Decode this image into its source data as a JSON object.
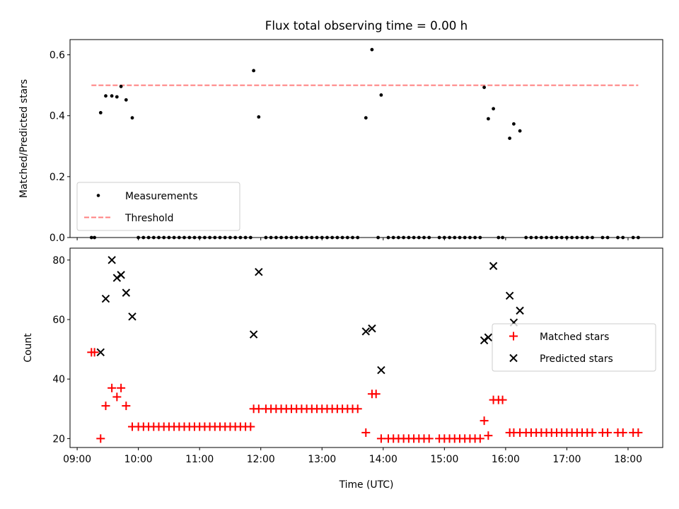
{
  "title": "Flux total observing time = 0.00 h",
  "chart_data": [
    {
      "type": "scatter",
      "ylabel": "Matched/Predicted stars",
      "xlabel": "",
      "xlim": [
        "08:53",
        "18:34"
      ],
      "ylim": [
        0,
        0.65
      ],
      "yticks": [
        "0.0",
        "0.2",
        "0.4",
        "0.6"
      ],
      "legend_placement": "lower-left",
      "legend": [
        "Measurements",
        "Threshold"
      ],
      "series": [
        {
          "name": "Measurements",
          "marker": "dot",
          "color": "#000000",
          "points": [
            [
              "09:14",
              0
            ],
            [
              "09:17",
              0
            ],
            [
              "09:23",
              0.41
            ],
            [
              "09:28",
              0.465
            ],
            [
              "09:34",
              0.465
            ],
            [
              "09:39",
              0.462
            ],
            [
              "09:43",
              0.496
            ],
            [
              "09:48",
              0.452
            ],
            [
              "09:54",
              0.393
            ],
            [
              "10:00",
              0
            ],
            [
              "10:05",
              0
            ],
            [
              "10:10",
              0
            ],
            [
              "10:15",
              0
            ],
            [
              "10:20",
              0
            ],
            [
              "10:25",
              0
            ],
            [
              "10:30",
              0
            ],
            [
              "10:35",
              0
            ],
            [
              "10:40",
              0
            ],
            [
              "10:45",
              0
            ],
            [
              "10:50",
              0
            ],
            [
              "10:55",
              0
            ],
            [
              "11:00",
              0
            ],
            [
              "11:05",
              0
            ],
            [
              "11:10",
              0
            ],
            [
              "11:15",
              0
            ],
            [
              "11:20",
              0
            ],
            [
              "11:25",
              0
            ],
            [
              "11:30",
              0
            ],
            [
              "11:35",
              0
            ],
            [
              "11:40",
              0
            ],
            [
              "11:45",
              0
            ],
            [
              "11:50",
              0
            ],
            [
              "11:53",
              0.548
            ],
            [
              "11:58",
              0.396
            ],
            [
              "12:05",
              0
            ],
            [
              "12:10",
              0
            ],
            [
              "12:15",
              0
            ],
            [
              "12:20",
              0
            ],
            [
              "12:25",
              0
            ],
            [
              "12:30",
              0
            ],
            [
              "12:35",
              0
            ],
            [
              "12:40",
              0
            ],
            [
              "12:45",
              0
            ],
            [
              "12:50",
              0
            ],
            [
              "12:55",
              0
            ],
            [
              "13:00",
              0
            ],
            [
              "13:05",
              0
            ],
            [
              "13:10",
              0
            ],
            [
              "13:15",
              0
            ],
            [
              "13:20",
              0
            ],
            [
              "13:25",
              0
            ],
            [
              "13:30",
              0
            ],
            [
              "13:35",
              0
            ],
            [
              "13:43",
              0.393
            ],
            [
              "13:49",
              0.617
            ],
            [
              "13:55",
              0
            ],
            [
              "13:58",
              0.468
            ],
            [
              "14:05",
              0
            ],
            [
              "14:10",
              0
            ],
            [
              "14:15",
              0
            ],
            [
              "14:20",
              0
            ],
            [
              "14:25",
              0
            ],
            [
              "14:30",
              0
            ],
            [
              "14:35",
              0
            ],
            [
              "14:40",
              0
            ],
            [
              "14:45",
              0
            ],
            [
              "14:55",
              0
            ],
            [
              "15:00",
              0
            ],
            [
              "15:05",
              0
            ],
            [
              "15:10",
              0
            ],
            [
              "15:15",
              0
            ],
            [
              "15:20",
              0
            ],
            [
              "15:25",
              0
            ],
            [
              "15:30",
              0
            ],
            [
              "15:35",
              0
            ],
            [
              "15:39",
              0.493
            ],
            [
              "15:43",
              0.39
            ],
            [
              "15:48",
              0.423
            ],
            [
              "15:53",
              0
            ],
            [
              "15:57",
              0
            ],
            [
              "16:04",
              0.326
            ],
            [
              "16:08",
              0.373
            ],
            [
              "16:14",
              0.35
            ],
            [
              "16:20",
              0
            ],
            [
              "16:25",
              0
            ],
            [
              "16:30",
              0
            ],
            [
              "16:35",
              0
            ],
            [
              "16:40",
              0
            ],
            [
              "16:45",
              0
            ],
            [
              "16:50",
              0
            ],
            [
              "16:55",
              0
            ],
            [
              "17:00",
              0
            ],
            [
              "17:05",
              0
            ],
            [
              "17:10",
              0
            ],
            [
              "17:15",
              0
            ],
            [
              "17:20",
              0
            ],
            [
              "17:25",
              0
            ],
            [
              "17:35",
              0
            ],
            [
              "17:40",
              0
            ],
            [
              "17:50",
              0
            ],
            [
              "17:55",
              0
            ],
            [
              "18:05",
              0
            ],
            [
              "18:10",
              0
            ]
          ]
        },
        {
          "name": "Threshold",
          "style": "dashed",
          "color": "#ff8080",
          "points": [
            [
              "09:14",
              0.5
            ],
            [
              "18:10",
              0.5
            ]
          ]
        }
      ]
    },
    {
      "type": "scatter",
      "ylabel": "Count",
      "xlabel": "Time (UTC)",
      "xlim": [
        "08:53",
        "18:34"
      ],
      "ylim": [
        17,
        84
      ],
      "yticks": [
        "20",
        "40",
        "60",
        "80"
      ],
      "xticks": [
        "09:00",
        "10:00",
        "11:00",
        "12:00",
        "13:00",
        "14:00",
        "15:00",
        "16:00",
        "17:00",
        "18:00"
      ],
      "legend_placement": "center-right",
      "legend": [
        "Matched stars",
        "Predicted stars"
      ],
      "series": [
        {
          "name": "Matched stars",
          "marker": "plus",
          "color": "#ff0000",
          "points": [
            [
              "09:14",
              49
            ],
            [
              "09:17",
              49
            ],
            [
              "09:23",
              20
            ],
            [
              "09:28",
              31
            ],
            [
              "09:34",
              37
            ],
            [
              "09:39",
              34
            ],
            [
              "09:43",
              37
            ],
            [
              "09:48",
              31
            ],
            [
              "09:54",
              24
            ],
            [
              "10:00",
              24
            ],
            [
              "10:05",
              24
            ],
            [
              "10:10",
              24
            ],
            [
              "10:15",
              24
            ],
            [
              "10:20",
              24
            ],
            [
              "10:25",
              24
            ],
            [
              "10:30",
              24
            ],
            [
              "10:35",
              24
            ],
            [
              "10:40",
              24
            ],
            [
              "10:45",
              24
            ],
            [
              "10:50",
              24
            ],
            [
              "10:55",
              24
            ],
            [
              "11:00",
              24
            ],
            [
              "11:05",
              24
            ],
            [
              "11:10",
              24
            ],
            [
              "11:15",
              24
            ],
            [
              "11:20",
              24
            ],
            [
              "11:25",
              24
            ],
            [
              "11:30",
              24
            ],
            [
              "11:35",
              24
            ],
            [
              "11:40",
              24
            ],
            [
              "11:45",
              24
            ],
            [
              "11:50",
              24
            ],
            [
              "11:53",
              30
            ],
            [
              "11:58",
              30
            ],
            [
              "12:05",
              30
            ],
            [
              "12:10",
              30
            ],
            [
              "12:15",
              30
            ],
            [
              "12:20",
              30
            ],
            [
              "12:25",
              30
            ],
            [
              "12:30",
              30
            ],
            [
              "12:35",
              30
            ],
            [
              "12:40",
              30
            ],
            [
              "12:45",
              30
            ],
            [
              "12:50",
              30
            ],
            [
              "12:55",
              30
            ],
            [
              "13:00",
              30
            ],
            [
              "13:05",
              30
            ],
            [
              "13:10",
              30
            ],
            [
              "13:15",
              30
            ],
            [
              "13:20",
              30
            ],
            [
              "13:25",
              30
            ],
            [
              "13:30",
              30
            ],
            [
              "13:35",
              30
            ],
            [
              "13:43",
              22
            ],
            [
              "13:49",
              35
            ],
            [
              "13:53",
              35
            ],
            [
              "13:58",
              20
            ],
            [
              "14:05",
              20
            ],
            [
              "14:10",
              20
            ],
            [
              "14:15",
              20
            ],
            [
              "14:20",
              20
            ],
            [
              "14:25",
              20
            ],
            [
              "14:30",
              20
            ],
            [
              "14:35",
              20
            ],
            [
              "14:40",
              20
            ],
            [
              "14:45",
              20
            ],
            [
              "14:55",
              20
            ],
            [
              "15:00",
              20
            ],
            [
              "15:05",
              20
            ],
            [
              "15:10",
              20
            ],
            [
              "15:15",
              20
            ],
            [
              "15:20",
              20
            ],
            [
              "15:25",
              20
            ],
            [
              "15:30",
              20
            ],
            [
              "15:35",
              20
            ],
            [
              "15:39",
              26
            ],
            [
              "15:43",
              21
            ],
            [
              "15:48",
              33
            ],
            [
              "15:53",
              33
            ],
            [
              "15:57",
              33
            ],
            [
              "16:04",
              22
            ],
            [
              "16:08",
              22
            ],
            [
              "16:14",
              22
            ],
            [
              "16:20",
              22
            ],
            [
              "16:25",
              22
            ],
            [
              "16:30",
              22
            ],
            [
              "16:35",
              22
            ],
            [
              "16:40",
              22
            ],
            [
              "16:45",
              22
            ],
            [
              "16:50",
              22
            ],
            [
              "16:55",
              22
            ],
            [
              "17:00",
              22
            ],
            [
              "17:05",
              22
            ],
            [
              "17:10",
              22
            ],
            [
              "17:15",
              22
            ],
            [
              "17:20",
              22
            ],
            [
              "17:25",
              22
            ],
            [
              "17:35",
              22
            ],
            [
              "17:40",
              22
            ],
            [
              "17:50",
              22
            ],
            [
              "17:55",
              22
            ],
            [
              "18:05",
              22
            ],
            [
              "18:10",
              22
            ]
          ]
        },
        {
          "name": "Predicted stars",
          "marker": "x",
          "color": "#000000",
          "points": [
            [
              "09:23",
              49
            ],
            [
              "09:28",
              67
            ],
            [
              "09:34",
              80
            ],
            [
              "09:39",
              74
            ],
            [
              "09:43",
              75
            ],
            [
              "09:48",
              69
            ],
            [
              "09:54",
              61
            ],
            [
              "11:53",
              55
            ],
            [
              "11:58",
              76
            ],
            [
              "13:43",
              56
            ],
            [
              "13:49",
              57
            ],
            [
              "13:58",
              43
            ],
            [
              "15:39",
              53
            ],
            [
              "15:43",
              54
            ],
            [
              "15:48",
              78
            ],
            [
              "16:04",
              68
            ],
            [
              "16:08",
              59
            ],
            [
              "16:14",
              63
            ]
          ]
        }
      ]
    }
  ]
}
